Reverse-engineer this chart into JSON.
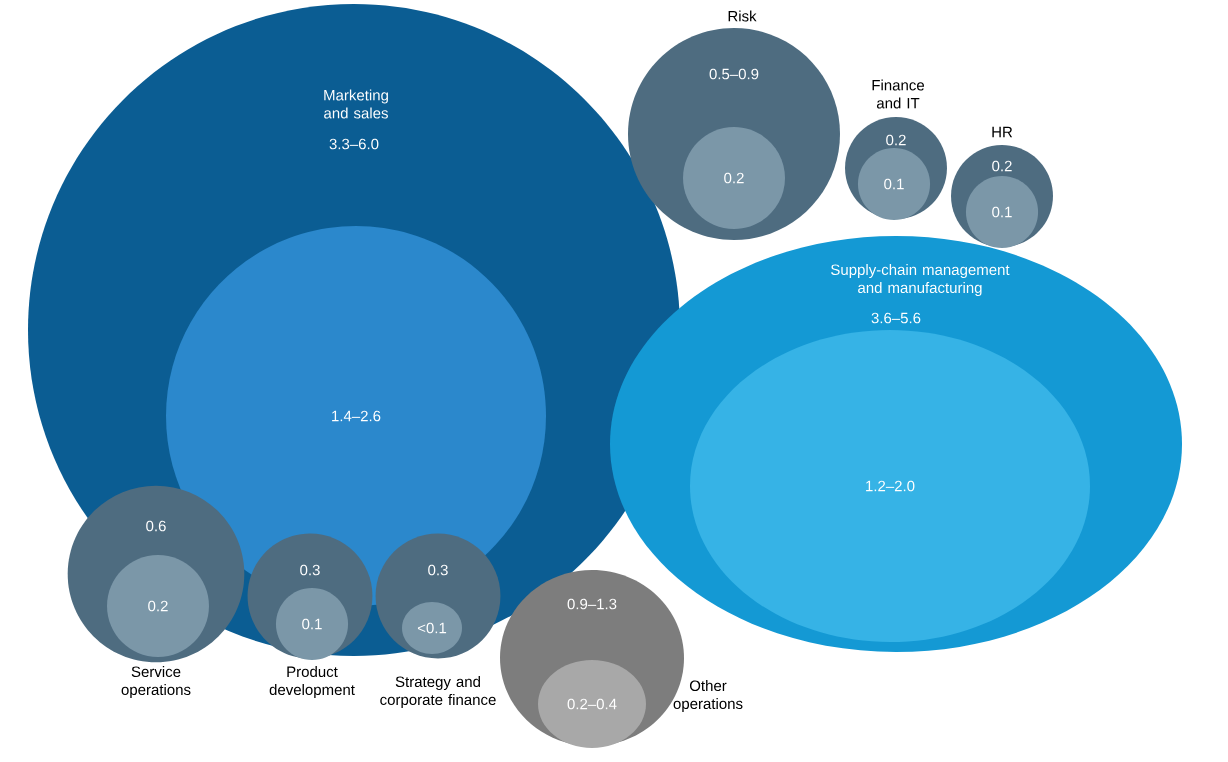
{
  "chart_data": {
    "type": "other",
    "categories": [
      "Marketing and sales",
      "Supply-chain management and manufacturing",
      "Risk",
      "Finance and IT",
      "HR",
      "Service operations",
      "Product development",
      "Strategy and corporate finance",
      "Other operations"
    ],
    "series": [
      {
        "values": [
          null,
          null,
          null,
          0.2,
          0.2,
          0.6,
          0.3,
          0.3,
          null
        ],
        "value_labels": [
          "3.3–6.0",
          "3.6–5.6",
          "0.5–0.9",
          "0.2",
          "0.2",
          "0.6",
          "0.3",
          "0.3",
          "0.9–1.3"
        ],
        "colors": [
          "#0b5d93",
          "#1499d4",
          "#4e6c80",
          "#4e6c80",
          "#4e6c80",
          "#4e6c80",
          "#4e6c80",
          "#4e6c80",
          "#7d7d7d"
        ]
      },
      {
        "values": [
          null,
          null,
          0.2,
          0.1,
          0.1,
          0.2,
          0.1,
          null,
          null
        ],
        "value_labels": [
          "1.4–2.6",
          "1.2–2.0",
          "0.2",
          "0.1",
          "0.1",
          "0.2",
          "0.1",
          "<0.1",
          "0.2–0.4"
        ],
        "colors": [
          "#2b88cc",
          "#36b3e6",
          "#7b97a8",
          "#7b97a8",
          "#7b97a8",
          "#7b97a8",
          "#7b97a8",
          "#7b97a8",
          "#a8a8a8"
        ]
      }
    ]
  }
}
